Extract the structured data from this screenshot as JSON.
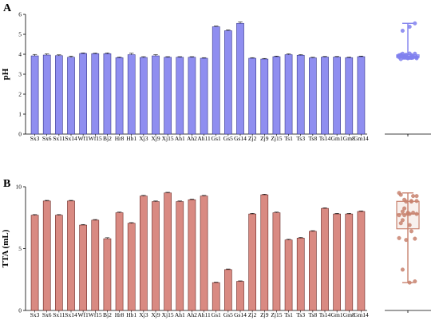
{
  "chart_data": [
    {
      "panel_label": "A",
      "type": "bar",
      "ylabel": "pH",
      "ylim": [
        0,
        6
      ],
      "yticks": [
        0,
        1,
        2,
        3,
        4,
        5,
        6
      ],
      "categories": [
        "Sx3",
        "Sx6",
        "Sx11",
        "Sx14",
        "Wf1",
        "Wf15",
        "Bj2",
        "Hr8",
        "Hb1",
        "Xj3",
        "Xj9",
        "Xj15",
        "Ah1",
        "Ah2",
        "Ah11",
        "Gs1",
        "Gs5",
        "Gs14",
        "Zj2",
        "Zj9",
        "Zj15",
        "Ts1",
        "Ts3",
        "Ts8",
        "Ts14",
        "Gm1",
        "Gm8",
        "Gm14"
      ],
      "values": [
        3.92,
        3.96,
        3.93,
        3.85,
        4.04,
        4.03,
        4.03,
        3.83,
        3.98,
        3.84,
        3.92,
        3.85,
        3.85,
        3.85,
        3.8,
        5.38,
        5.18,
        5.55,
        3.8,
        3.76,
        3.88,
        3.98,
        3.95,
        3.82,
        3.86,
        3.86,
        3.83,
        3.88
      ],
      "errors": [
        0.07,
        0.06,
        0.04,
        0.06,
        0.03,
        0.03,
        0.04,
        0.03,
        0.07,
        0.04,
        0.06,
        0.03,
        0.03,
        0.03,
        0.03,
        0.03,
        0.04,
        0.07,
        0.03,
        0.03,
        0.03,
        0.04,
        0.03,
        0.03,
        0.03,
        0.03,
        0.03,
        0.03
      ],
      "bar_color": "#8f8ef0",
      "bar_edge": "#3a3a8a",
      "boxplot": {
        "type": "box-dot",
        "ylim": [
          0,
          6
        ],
        "min": 3.76,
        "q1": 3.84,
        "median": 3.88,
        "q3": 3.97,
        "max": 5.55,
        "color": "#8080ee"
      }
    },
    {
      "panel_label": "B",
      "type": "bar",
      "ylabel": "TTA (mL)",
      "ylim": [
        0,
        10
      ],
      "yticks": [
        0,
        5,
        10
      ],
      "categories": [
        "Sx3",
        "Sx6",
        "Sx11",
        "Sx14",
        "Wf1",
        "Wf15",
        "Bj2",
        "Hr8",
        "Hb1",
        "Xj3",
        "Xj9",
        "Xj15",
        "Ah1",
        "Ah2",
        "Ah11",
        "Gs1",
        "Gs5",
        "Gs14",
        "Zj2",
        "Zj9",
        "Zj15",
        "Ts1",
        "Ts3",
        "Ts8",
        "Ts14",
        "Gm1",
        "Gm8",
        "Gm14"
      ],
      "values": [
        7.7,
        8.85,
        7.7,
        8.85,
        6.9,
        7.3,
        5.8,
        7.9,
        7.05,
        9.25,
        8.8,
        9.5,
        8.8,
        8.95,
        9.25,
        2.25,
        3.3,
        2.35,
        7.8,
        9.35,
        7.9,
        5.7,
        5.85,
        6.4,
        8.25,
        7.8,
        7.8,
        8.0
      ],
      "errors": [
        0.05,
        0.05,
        0.05,
        0.05,
        0.05,
        0.05,
        0.08,
        0.05,
        0.05,
        0.05,
        0.05,
        0.05,
        0.05,
        0.05,
        0.05,
        0.04,
        0.05,
        0.04,
        0.05,
        0.05,
        0.05,
        0.05,
        0.05,
        0.05,
        0.05,
        0.05,
        0.05,
        0.05
      ],
      "bar_color": "#d98a82",
      "bar_edge": "#6a2a26",
      "boxplot": {
        "type": "box-dot",
        "ylim": [
          0,
          10
        ],
        "min": 2.25,
        "q1": 6.6,
        "median": 7.8,
        "q3": 8.82,
        "max": 9.5,
        "color": "#c8826e"
      }
    }
  ]
}
